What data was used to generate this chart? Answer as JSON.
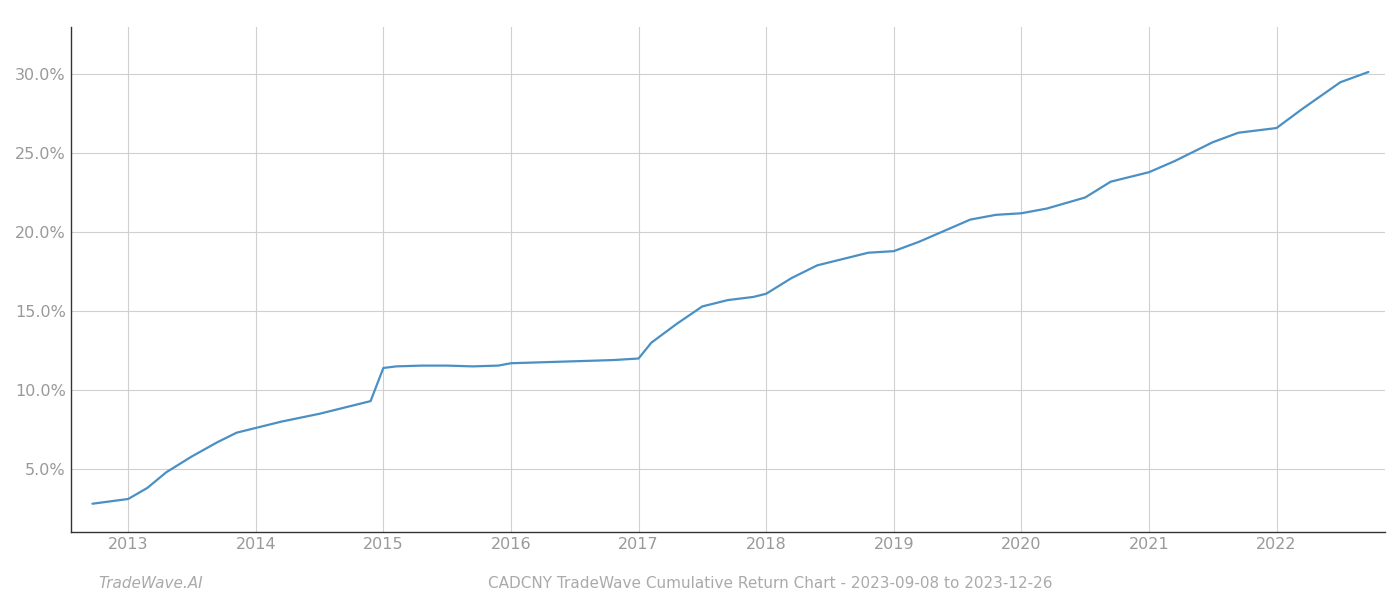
{
  "title": "CADCNY TradeWave Cumulative Return Chart - 2023-09-08 to 2023-12-26",
  "watermark": "TradeWave.AI",
  "line_color": "#4a90c4",
  "line_width": 1.6,
  "background_color": "#ffffff",
  "grid_color": "#d0d0d0",
  "x_years": [
    2013,
    2014,
    2015,
    2016,
    2017,
    2018,
    2019,
    2020,
    2021,
    2022
  ],
  "x_data": [
    2012.72,
    2013.0,
    2013.15,
    2013.3,
    2013.5,
    2013.7,
    2013.85,
    2014.0,
    2014.2,
    2014.5,
    2014.75,
    2014.9,
    2015.0,
    2015.1,
    2015.3,
    2015.5,
    2015.7,
    2015.9,
    2016.0,
    2016.2,
    2016.4,
    2016.6,
    2016.8,
    2017.0,
    2017.1,
    2017.3,
    2017.5,
    2017.7,
    2017.9,
    2018.0,
    2018.2,
    2018.4,
    2018.6,
    2018.8,
    2019.0,
    2019.2,
    2019.4,
    2019.6,
    2019.8,
    2020.0,
    2020.2,
    2020.5,
    2020.7,
    2020.9,
    2021.0,
    2021.2,
    2021.5,
    2021.7,
    2021.9,
    2022.0,
    2022.2,
    2022.5,
    2022.72
  ],
  "y_data": [
    2.8,
    3.1,
    3.8,
    4.8,
    5.8,
    6.7,
    7.3,
    7.6,
    8.0,
    8.5,
    9.0,
    9.3,
    11.4,
    11.5,
    11.55,
    11.55,
    11.5,
    11.55,
    11.7,
    11.75,
    11.8,
    11.85,
    11.9,
    12.0,
    13.0,
    14.2,
    15.3,
    15.7,
    15.9,
    16.1,
    17.1,
    17.9,
    18.3,
    18.7,
    18.8,
    19.4,
    20.1,
    20.8,
    21.1,
    21.2,
    21.5,
    22.2,
    23.2,
    23.6,
    23.8,
    24.5,
    25.7,
    26.3,
    26.5,
    26.6,
    27.8,
    29.5,
    30.15
  ],
  "yticks": [
    5.0,
    10.0,
    15.0,
    20.0,
    25.0,
    30.0
  ],
  "ylim": [
    1.0,
    33.0
  ],
  "xlim": [
    2012.55,
    2022.85
  ],
  "title_fontsize": 11,
  "watermark_fontsize": 11,
  "tick_fontsize": 11.5,
  "tick_color": "#999999",
  "spine_color": "#333333"
}
